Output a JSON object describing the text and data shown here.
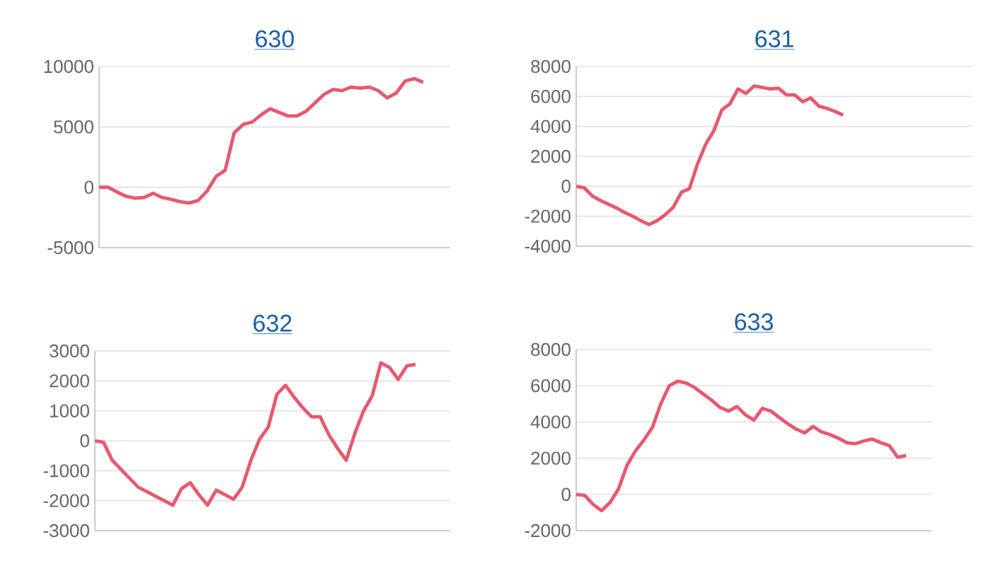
{
  "chart_data": [
    {
      "type": "line",
      "title": "630",
      "categories": [
        null,
        null,
        null,
        null,
        null,
        null,
        null,
        null,
        null,
        null,
        null,
        null,
        null,
        null,
        null,
        null,
        null,
        null,
        null,
        null,
        null,
        null,
        null,
        null,
        null,
        null,
        null,
        null,
        null,
        null,
        null,
        null,
        null,
        null,
        null,
        null,
        null,
        null,
        null,
        null
      ],
      "series": [
        {
          "color": "#e8586e",
          "values": [
            0,
            0,
            -400,
            -750,
            -900,
            -850,
            -500,
            -850,
            -1000,
            -1200,
            -1300,
            -1100,
            -300,
            900,
            1400,
            4500,
            5200,
            5400,
            6000,
            6500,
            6200,
            5900,
            5900,
            6300,
            7000,
            7700,
            8100,
            8000,
            8300,
            8200,
            8300,
            8000,
            7400,
            7800,
            8800,
            9000,
            8700,
            null,
            null,
            null
          ]
        }
      ],
      "ylim": [
        -5000,
        10000
      ],
      "yticks": [
        -5000,
        0,
        5000,
        10000
      ],
      "grid": "y"
    },
    {
      "type": "line",
      "title": "631",
      "categories": [
        null,
        null,
        null,
        null,
        null,
        null,
        null,
        null,
        null,
        null,
        null,
        null,
        null,
        null,
        null,
        null,
        null,
        null,
        null,
        null,
        null,
        null,
        null,
        null,
        null,
        null,
        null,
        null,
        null,
        null,
        null,
        null,
        null,
        null,
        null,
        null,
        null,
        null,
        null,
        null,
        null,
        null,
        null,
        null,
        null,
        null,
        null,
        null,
        null,
        null
      ],
      "series": [
        {
          "color": "#e8586e",
          "values": [
            0,
            -100,
            -650,
            -950,
            -1200,
            -1450,
            -1750,
            -2000,
            -2300,
            -2550,
            -2300,
            -1900,
            -1400,
            -400,
            -150,
            1500,
            2800,
            3700,
            5100,
            5500,
            6500,
            6200,
            6700,
            6600,
            6500,
            6550,
            6100,
            6100,
            5650,
            5900,
            5350,
            5200,
            5000,
            4750,
            null,
            null,
            null,
            null,
            null,
            null,
            null,
            null,
            null,
            null,
            null,
            null,
            null,
            null,
            null,
            null
          ]
        }
      ],
      "ylim": [
        -4000,
        8000
      ],
      "yticks": [
        -4000,
        -2000,
        0,
        2000,
        4000,
        6000,
        8000
      ],
      "grid": "y"
    },
    {
      "type": "line",
      "title": "632",
      "categories": [
        null,
        null,
        null,
        null,
        null,
        null,
        null,
        null,
        null,
        null,
        null,
        null,
        null,
        null,
        null,
        null,
        null,
        null,
        null,
        null,
        null,
        null,
        null,
        null,
        null,
        null,
        null,
        null,
        null,
        null,
        null,
        null,
        null,
        null,
        null,
        null,
        null,
        null,
        null,
        null,
        null,
        null
      ],
      "series": [
        {
          "color": "#e8586e",
          "values": [
            0,
            -50,
            -650,
            -950,
            -1250,
            -1550,
            -1700,
            -1850,
            -2000,
            -2150,
            -1600,
            -1400,
            -1800,
            -2150,
            -1650,
            -1800,
            -1950,
            -1550,
            -650,
            50,
            450,
            1550,
            1850,
            1450,
            1100,
            800,
            800,
            200,
            -250,
            -650,
            250,
            1000,
            1500,
            2600,
            2450,
            2050,
            2500,
            2550,
            null,
            null,
            null,
            null
          ]
        }
      ],
      "ylim": [
        -3000,
        3000
      ],
      "yticks": [
        -3000,
        -2000,
        -1000,
        0,
        1000,
        2000,
        3000
      ],
      "grid": "y"
    },
    {
      "type": "line",
      "title": "633",
      "categories": [
        null,
        null,
        null,
        null,
        null,
        null,
        null,
        null,
        null,
        null,
        null,
        null,
        null,
        null,
        null,
        null,
        null,
        null,
        null,
        null,
        null,
        null,
        null,
        null,
        null,
        null,
        null,
        null,
        null,
        null,
        null,
        null,
        null,
        null,
        null,
        null,
        null,
        null,
        null,
        null,
        null,
        null,
        null
      ],
      "series": [
        {
          "color": "#e8586e",
          "values": [
            0,
            -50,
            -550,
            -900,
            -450,
            300,
            1600,
            2400,
            3000,
            3700,
            5000,
            6000,
            6250,
            6150,
            5900,
            5550,
            5200,
            4800,
            4600,
            4850,
            4400,
            4100,
            4750,
            4600,
            4250,
            3900,
            3600,
            3400,
            3750,
            3450,
            3300,
            3100,
            2850,
            2800,
            2950,
            3050,
            2850,
            2700,
            2050,
            2150,
            null,
            null,
            null
          ]
        }
      ],
      "ylim": [
        -2000,
        8000
      ],
      "yticks": [
        -2000,
        0,
        2000,
        4000,
        6000,
        8000
      ],
      "grid": "y"
    }
  ]
}
